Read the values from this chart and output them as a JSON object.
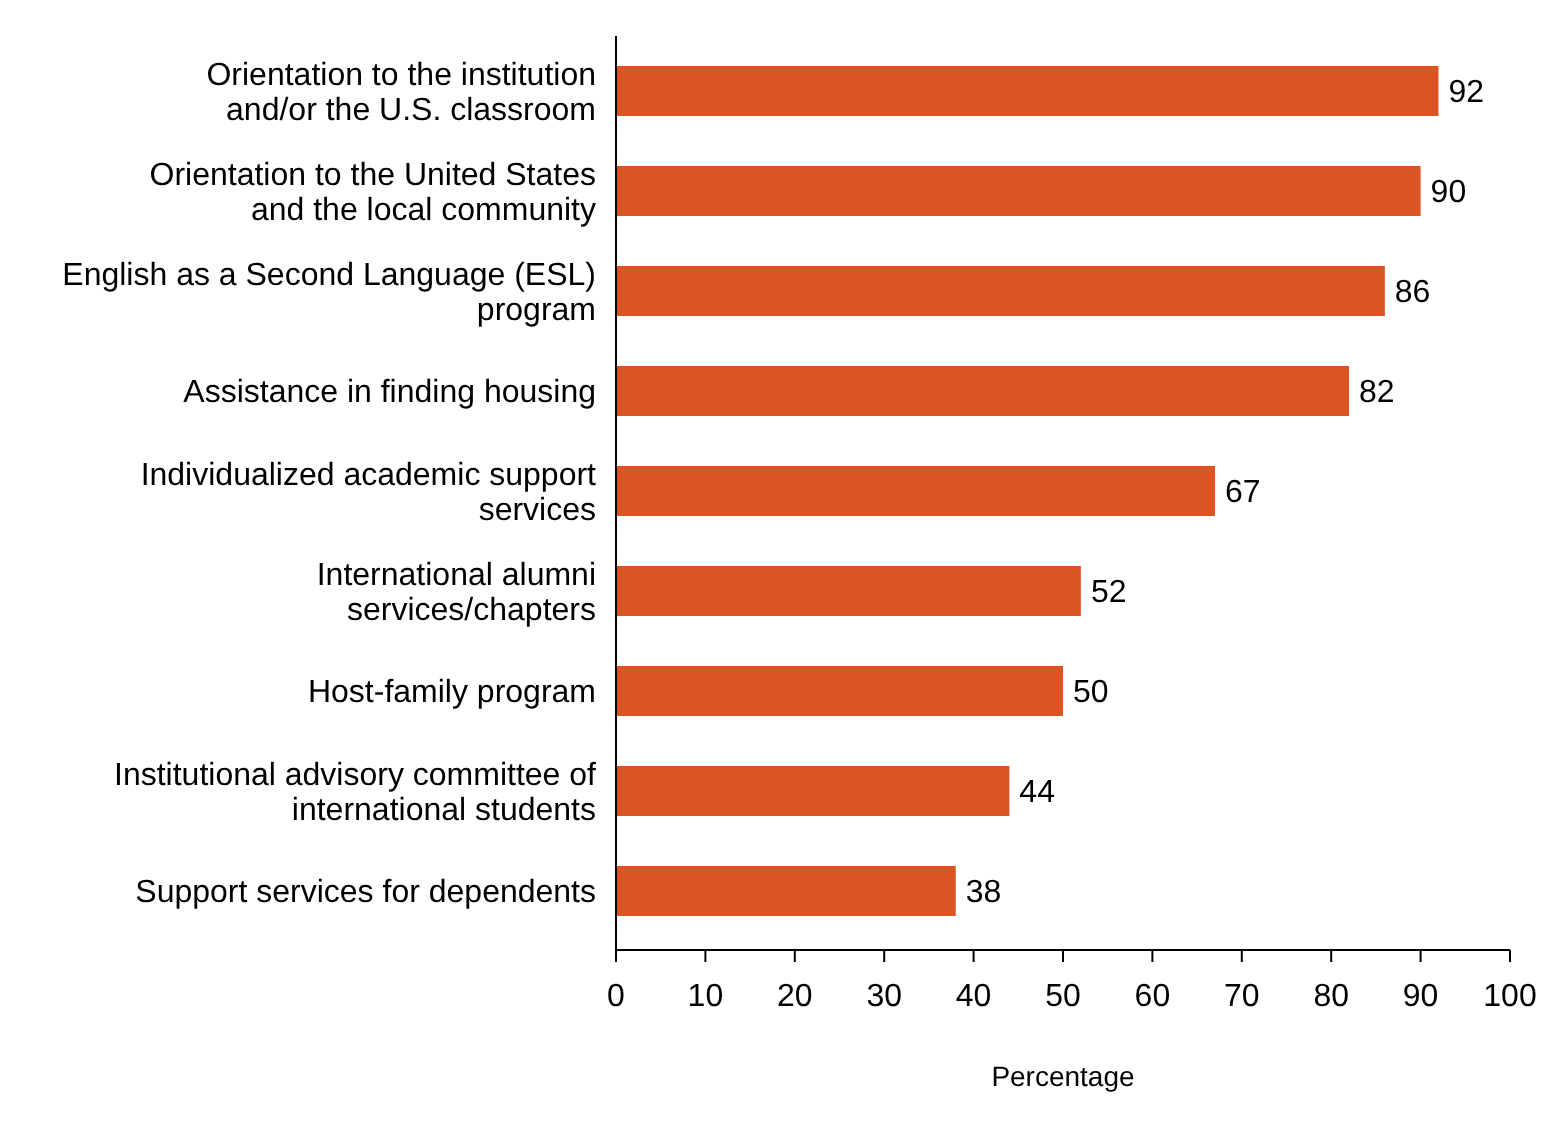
{
  "chart_data": {
    "type": "bar",
    "orientation": "horizontal",
    "xlabel": "Percentage",
    "categories": [
      "Orientation to the institution and/or the U.S. classroom",
      "Orientation to the United States and the local community",
      "English as a Second Language (ESL) program",
      "Assistance in finding housing",
      "Individualized academic support services",
      "International alumni services/chapters",
      "Host-family program",
      "Institutional advisory committee of international students",
      "Support services for dependents"
    ],
    "values": [
      92,
      90,
      86,
      82,
      67,
      52,
      50,
      44,
      38
    ],
    "color": "#dc5421",
    "data_labels": true,
    "grid": false,
    "xlim": [
      0,
      100
    ],
    "xticks": [
      0,
      10,
      20,
      30,
      40,
      50,
      60,
      70,
      80,
      90,
      100
    ]
  }
}
